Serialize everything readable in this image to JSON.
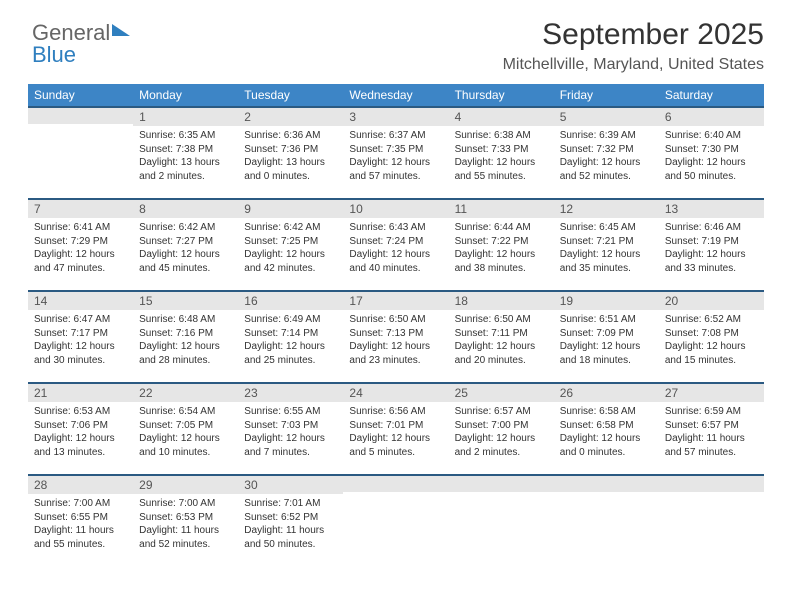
{
  "logo": {
    "general": "General",
    "blue": "Blue"
  },
  "header": {
    "title": "September 2025",
    "location": "Mitchellville, Maryland, United States"
  },
  "colors": {
    "header_bg": "#3d85c6",
    "header_text": "#ffffff",
    "row_border": "#2b5a82",
    "daynum_bg": "#e6e6e6",
    "daynum_text": "#555555",
    "body_text": "#333333",
    "logo_gray": "#666666",
    "logo_blue": "#2f7fbf",
    "page_bg": "#ffffff"
  },
  "days_of_week": [
    "Sunday",
    "Monday",
    "Tuesday",
    "Wednesday",
    "Thursday",
    "Friday",
    "Saturday"
  ],
  "weeks": [
    [
      {
        "n": "",
        "sr": "",
        "ss": "",
        "dl": ""
      },
      {
        "n": "1",
        "sr": "Sunrise: 6:35 AM",
        "ss": "Sunset: 7:38 PM",
        "dl": "Daylight: 13 hours and 2 minutes."
      },
      {
        "n": "2",
        "sr": "Sunrise: 6:36 AM",
        "ss": "Sunset: 7:36 PM",
        "dl": "Daylight: 13 hours and 0 minutes."
      },
      {
        "n": "3",
        "sr": "Sunrise: 6:37 AM",
        "ss": "Sunset: 7:35 PM",
        "dl": "Daylight: 12 hours and 57 minutes."
      },
      {
        "n": "4",
        "sr": "Sunrise: 6:38 AM",
        "ss": "Sunset: 7:33 PM",
        "dl": "Daylight: 12 hours and 55 minutes."
      },
      {
        "n": "5",
        "sr": "Sunrise: 6:39 AM",
        "ss": "Sunset: 7:32 PM",
        "dl": "Daylight: 12 hours and 52 minutes."
      },
      {
        "n": "6",
        "sr": "Sunrise: 6:40 AM",
        "ss": "Sunset: 7:30 PM",
        "dl": "Daylight: 12 hours and 50 minutes."
      }
    ],
    [
      {
        "n": "7",
        "sr": "Sunrise: 6:41 AM",
        "ss": "Sunset: 7:29 PM",
        "dl": "Daylight: 12 hours and 47 minutes."
      },
      {
        "n": "8",
        "sr": "Sunrise: 6:42 AM",
        "ss": "Sunset: 7:27 PM",
        "dl": "Daylight: 12 hours and 45 minutes."
      },
      {
        "n": "9",
        "sr": "Sunrise: 6:42 AM",
        "ss": "Sunset: 7:25 PM",
        "dl": "Daylight: 12 hours and 42 minutes."
      },
      {
        "n": "10",
        "sr": "Sunrise: 6:43 AM",
        "ss": "Sunset: 7:24 PM",
        "dl": "Daylight: 12 hours and 40 minutes."
      },
      {
        "n": "11",
        "sr": "Sunrise: 6:44 AM",
        "ss": "Sunset: 7:22 PM",
        "dl": "Daylight: 12 hours and 38 minutes."
      },
      {
        "n": "12",
        "sr": "Sunrise: 6:45 AM",
        "ss": "Sunset: 7:21 PM",
        "dl": "Daylight: 12 hours and 35 minutes."
      },
      {
        "n": "13",
        "sr": "Sunrise: 6:46 AM",
        "ss": "Sunset: 7:19 PM",
        "dl": "Daylight: 12 hours and 33 minutes."
      }
    ],
    [
      {
        "n": "14",
        "sr": "Sunrise: 6:47 AM",
        "ss": "Sunset: 7:17 PM",
        "dl": "Daylight: 12 hours and 30 minutes."
      },
      {
        "n": "15",
        "sr": "Sunrise: 6:48 AM",
        "ss": "Sunset: 7:16 PM",
        "dl": "Daylight: 12 hours and 28 minutes."
      },
      {
        "n": "16",
        "sr": "Sunrise: 6:49 AM",
        "ss": "Sunset: 7:14 PM",
        "dl": "Daylight: 12 hours and 25 minutes."
      },
      {
        "n": "17",
        "sr": "Sunrise: 6:50 AM",
        "ss": "Sunset: 7:13 PM",
        "dl": "Daylight: 12 hours and 23 minutes."
      },
      {
        "n": "18",
        "sr": "Sunrise: 6:50 AM",
        "ss": "Sunset: 7:11 PM",
        "dl": "Daylight: 12 hours and 20 minutes."
      },
      {
        "n": "19",
        "sr": "Sunrise: 6:51 AM",
        "ss": "Sunset: 7:09 PM",
        "dl": "Daylight: 12 hours and 18 minutes."
      },
      {
        "n": "20",
        "sr": "Sunrise: 6:52 AM",
        "ss": "Sunset: 7:08 PM",
        "dl": "Daylight: 12 hours and 15 minutes."
      }
    ],
    [
      {
        "n": "21",
        "sr": "Sunrise: 6:53 AM",
        "ss": "Sunset: 7:06 PM",
        "dl": "Daylight: 12 hours and 13 minutes."
      },
      {
        "n": "22",
        "sr": "Sunrise: 6:54 AM",
        "ss": "Sunset: 7:05 PM",
        "dl": "Daylight: 12 hours and 10 minutes."
      },
      {
        "n": "23",
        "sr": "Sunrise: 6:55 AM",
        "ss": "Sunset: 7:03 PM",
        "dl": "Daylight: 12 hours and 7 minutes."
      },
      {
        "n": "24",
        "sr": "Sunrise: 6:56 AM",
        "ss": "Sunset: 7:01 PM",
        "dl": "Daylight: 12 hours and 5 minutes."
      },
      {
        "n": "25",
        "sr": "Sunrise: 6:57 AM",
        "ss": "Sunset: 7:00 PM",
        "dl": "Daylight: 12 hours and 2 minutes."
      },
      {
        "n": "26",
        "sr": "Sunrise: 6:58 AM",
        "ss": "Sunset: 6:58 PM",
        "dl": "Daylight: 12 hours and 0 minutes."
      },
      {
        "n": "27",
        "sr": "Sunrise: 6:59 AM",
        "ss": "Sunset: 6:57 PM",
        "dl": "Daylight: 11 hours and 57 minutes."
      }
    ],
    [
      {
        "n": "28",
        "sr": "Sunrise: 7:00 AM",
        "ss": "Sunset: 6:55 PM",
        "dl": "Daylight: 11 hours and 55 minutes."
      },
      {
        "n": "29",
        "sr": "Sunrise: 7:00 AM",
        "ss": "Sunset: 6:53 PM",
        "dl": "Daylight: 11 hours and 52 minutes."
      },
      {
        "n": "30",
        "sr": "Sunrise: 7:01 AM",
        "ss": "Sunset: 6:52 PM",
        "dl": "Daylight: 11 hours and 50 minutes."
      },
      {
        "n": "",
        "sr": "",
        "ss": "",
        "dl": ""
      },
      {
        "n": "",
        "sr": "",
        "ss": "",
        "dl": ""
      },
      {
        "n": "",
        "sr": "",
        "ss": "",
        "dl": ""
      },
      {
        "n": "",
        "sr": "",
        "ss": "",
        "dl": ""
      }
    ]
  ]
}
